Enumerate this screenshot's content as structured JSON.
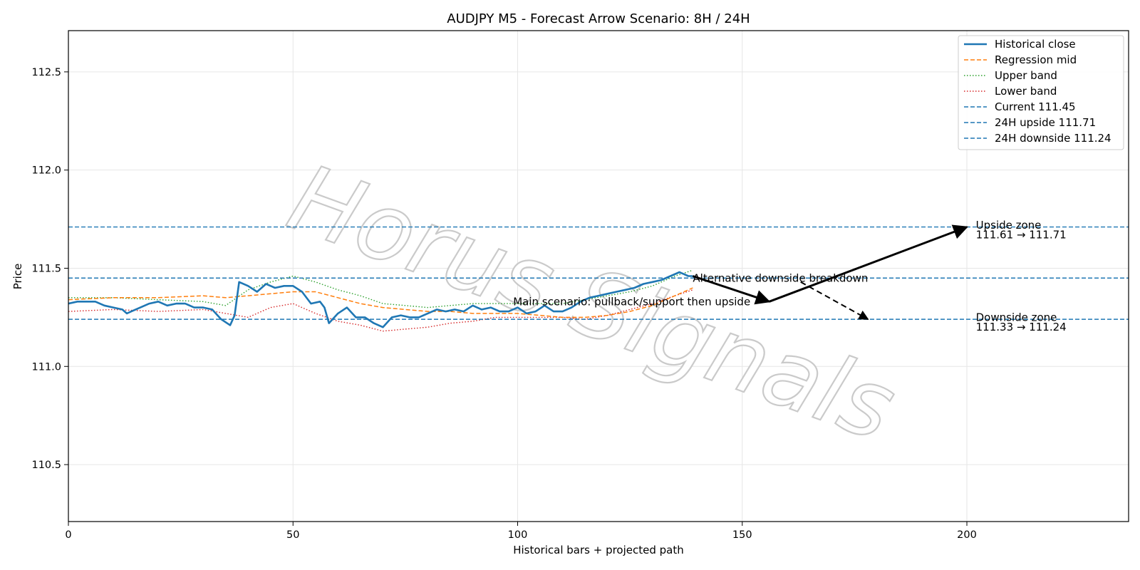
{
  "chart_data": {
    "type": "line",
    "title": "AUDJPY M5 - Forecast Arrow Scenario: 8H / 24H",
    "xlabel": "Historical bars + projected path",
    "ylabel": "Price",
    "xlim": [
      0,
      236
    ],
    "ylim": [
      110.21,
      112.71
    ],
    "xticks": [
      0,
      50,
      100,
      150,
      200
    ],
    "yticks": [
      110.5,
      111.0,
      111.5,
      112.0,
      112.5
    ],
    "grid": true,
    "legend_position": "top-right",
    "colors": {
      "close": "#1f77b4",
      "mid": "#ff7f0e",
      "upper": "#2ca02c",
      "lower": "#d62728",
      "hline": "#1f77b4",
      "arrow": "#000000"
    },
    "series": [
      {
        "name": "Historical close",
        "style": "solid",
        "x": [
          0,
          2,
          4,
          6,
          8,
          10,
          12,
          13,
          14,
          16,
          18,
          20,
          22,
          24,
          26,
          28,
          30,
          32,
          34,
          36,
          37,
          38,
          40,
          42,
          44,
          46,
          48,
          50,
          52,
          54,
          56,
          57,
          58,
          60,
          62,
          64,
          66,
          68,
          70,
          72,
          74,
          76,
          78,
          80,
          82,
          84,
          86,
          88,
          90,
          92,
          94,
          96,
          98,
          100,
          102,
          104,
          106,
          108,
          110,
          112,
          114,
          116,
          118,
          120,
          122,
          124,
          126,
          128,
          130,
          132,
          134,
          136,
          137,
          138,
          139
        ],
        "y": [
          111.32,
          111.33,
          111.33,
          111.33,
          111.31,
          111.3,
          111.29,
          111.27,
          111.28,
          111.3,
          111.32,
          111.33,
          111.31,
          111.32,
          111.32,
          111.3,
          111.3,
          111.29,
          111.24,
          111.21,
          111.26,
          111.43,
          111.41,
          111.38,
          111.42,
          111.4,
          111.41,
          111.41,
          111.38,
          111.32,
          111.33,
          111.3,
          111.22,
          111.27,
          111.3,
          111.25,
          111.25,
          111.22,
          111.2,
          111.25,
          111.26,
          111.25,
          111.25,
          111.27,
          111.29,
          111.28,
          111.29,
          111.28,
          111.31,
          111.29,
          111.3,
          111.28,
          111.28,
          111.3,
          111.27,
          111.28,
          111.31,
          111.28,
          111.28,
          111.3,
          111.33,
          111.35,
          111.36,
          111.37,
          111.38,
          111.39,
          111.4,
          111.42,
          111.43,
          111.44,
          111.46,
          111.48,
          111.47,
          111.46,
          111.46
        ]
      },
      {
        "name": "Regression mid",
        "style": "dashed",
        "x": [
          0,
          10,
          20,
          30,
          35,
          40,
          45,
          50,
          55,
          60,
          65,
          70,
          75,
          80,
          85,
          90,
          95,
          100,
          105,
          110,
          115,
          120,
          125,
          130,
          135,
          139
        ],
        "y": [
          111.34,
          111.35,
          111.35,
          111.36,
          111.35,
          111.36,
          111.37,
          111.38,
          111.38,
          111.35,
          111.32,
          111.3,
          111.29,
          111.28,
          111.28,
          111.27,
          111.27,
          111.27,
          111.26,
          111.25,
          111.25,
          111.26,
          111.28,
          111.31,
          111.36,
          111.4
        ]
      },
      {
        "name": "Upper band",
        "style": "dotted",
        "x": [
          0,
          10,
          20,
          30,
          35,
          40,
          45,
          50,
          55,
          60,
          65,
          70,
          75,
          80,
          85,
          90,
          95,
          100,
          105,
          110,
          115,
          120,
          125,
          130,
          135,
          139
        ],
        "y": [
          111.35,
          111.35,
          111.34,
          111.33,
          111.31,
          111.39,
          111.43,
          111.46,
          111.43,
          111.39,
          111.36,
          111.32,
          111.31,
          111.3,
          111.31,
          111.32,
          111.32,
          111.32,
          111.32,
          111.32,
          111.34,
          111.36,
          111.38,
          111.41,
          111.46,
          111.49
        ]
      },
      {
        "name": "Lower band",
        "style": "dotted",
        "x": [
          0,
          10,
          20,
          30,
          35,
          40,
          45,
          50,
          55,
          60,
          65,
          70,
          75,
          80,
          85,
          90,
          95,
          100,
          105,
          110,
          115,
          120,
          125,
          130,
          135,
          139
        ],
        "y": [
          111.28,
          111.29,
          111.28,
          111.29,
          111.27,
          111.25,
          111.3,
          111.32,
          111.27,
          111.23,
          111.21,
          111.18,
          111.19,
          111.2,
          111.22,
          111.23,
          111.25,
          111.25,
          111.25,
          111.25,
          111.24,
          111.26,
          111.29,
          111.32,
          111.36,
          111.39
        ]
      }
    ],
    "hlines": [
      {
        "name": "Current 111.45",
        "y": 111.45
      },
      {
        "name": "24H upside 111.71",
        "y": 111.71
      },
      {
        "name": "24H downside 111.24",
        "y": 111.24
      }
    ],
    "arrows": [
      {
        "style": "solid",
        "from": [
          139,
          111.46
        ],
        "to": [
          156,
          111.33
        ]
      },
      {
        "style": "solid",
        "from": [
          156,
          111.33
        ],
        "to": [
          200,
          111.71
        ]
      },
      {
        "style": "dashed",
        "from": [
          163,
          111.43
        ],
        "to": [
          178,
          111.24
        ]
      }
    ],
    "annotations": [
      {
        "text": "Alternative downside breakdown",
        "x": 139,
        "y": 111.45
      },
      {
        "text": "Main scenario: pullback/support then upside",
        "x": 99,
        "y": 111.33
      },
      {
        "text": "Upside zone",
        "x": 202,
        "y": 111.72
      },
      {
        "text": "111.61 → 111.71",
        "x": 202,
        "y": 111.67
      },
      {
        "text": "Downside zone",
        "x": 202,
        "y": 111.25
      },
      {
        "text": "111.33 → 111.24",
        "x": 202,
        "y": 111.2
      }
    ],
    "watermark": "Horus Signals"
  }
}
